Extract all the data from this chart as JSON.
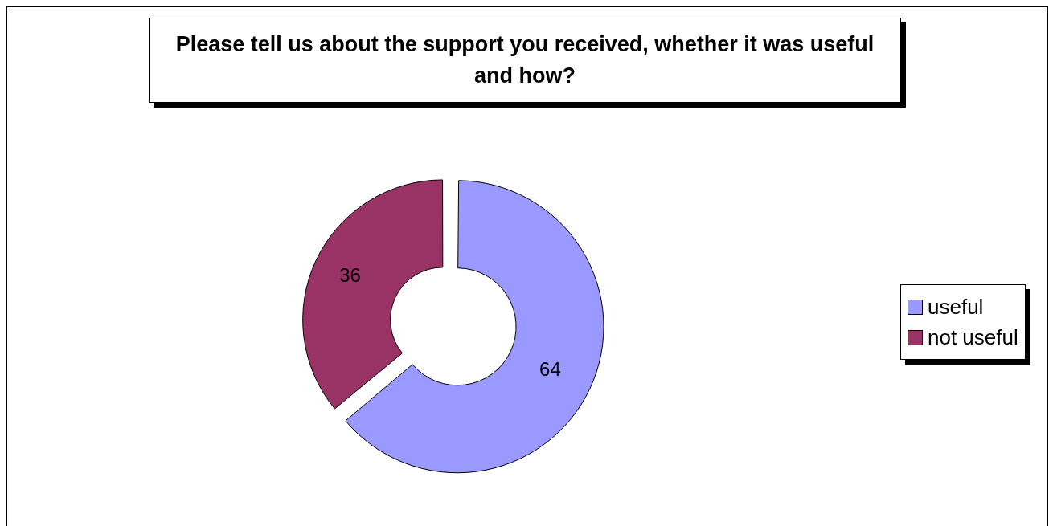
{
  "chart_data": {
    "type": "donut",
    "title": "Please tell us about the support you received, whether it was useful and how?",
    "categories": [
      "useful",
      "not useful"
    ],
    "values": [
      64,
      36
    ],
    "colors": [
      "#9999ff",
      "#993366"
    ],
    "data_labels": true,
    "legend": "right"
  }
}
